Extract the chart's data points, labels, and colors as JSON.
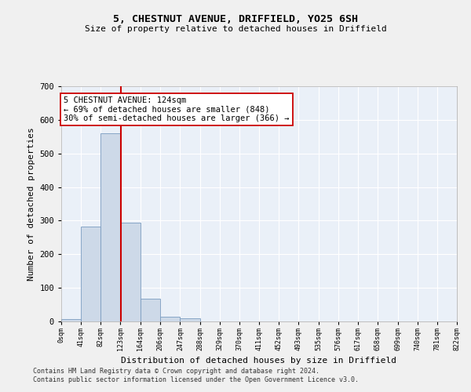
{
  "title1": "5, CHESTNUT AVENUE, DRIFFIELD, YO25 6SH",
  "title2": "Size of property relative to detached houses in Driffield",
  "xlabel": "Distribution of detached houses by size in Driffield",
  "ylabel": "Number of detached properties",
  "property_size": 124,
  "property_line_label": "5 CHESTNUT AVENUE: 124sqm",
  "annotation_line1": "← 69% of detached houses are smaller (848)",
  "annotation_line2": "30% of semi-detached houses are larger (366) →",
  "bin_edges": [
    0,
    41,
    82,
    123,
    164,
    206,
    247,
    288,
    329,
    370,
    411,
    452,
    493,
    535,
    576,
    617,
    658,
    699,
    740,
    781,
    822
  ],
  "bin_counts": [
    8,
    283,
    560,
    293,
    68,
    15,
    10,
    0,
    0,
    0,
    0,
    0,
    0,
    0,
    0,
    0,
    0,
    0,
    0,
    0
  ],
  "bar_color": "#cdd9e8",
  "bar_edge_color": "#7a9cc0",
  "line_color": "#cc0000",
  "background_color": "#eaf0f8",
  "grid_color": "#ffffff",
  "fig_background": "#f0f0f0",
  "annotation_box_color": "#ffffff",
  "annotation_box_edge": "#cc0000",
  "ylim": [
    0,
    700
  ],
  "yticks": [
    0,
    100,
    200,
    300,
    400,
    500,
    600,
    700
  ],
  "footer1": "Contains HM Land Registry data © Crown copyright and database right 2024.",
  "footer2": "Contains public sector information licensed under the Open Government Licence v3.0."
}
